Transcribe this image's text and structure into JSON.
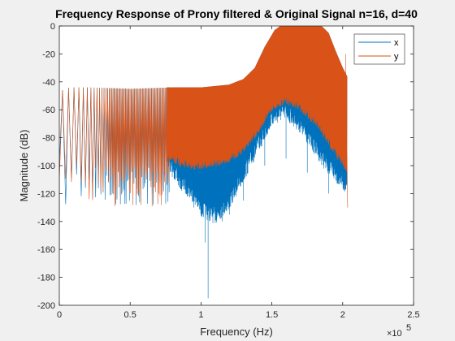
{
  "chart_data": {
    "type": "line",
    "title": "Frequency Response of Prony filtered & Original Signal  n=16, d=40",
    "xlabel": "Frequency (Hz)",
    "ylabel": "Magnitude (dB)",
    "x_exponent_label": "×10",
    "x_exponent_value": "5",
    "xlim": [
      0,
      2.5
    ],
    "ylim": [
      -200,
      0
    ],
    "x_unit_multiplier": 100000,
    "xticks": [
      0,
      0.5,
      1,
      1.5,
      2,
      2.5
    ],
    "xtick_labels": [
      "0",
      "0.5",
      "1",
      "1.5",
      "2",
      "2.5"
    ],
    "yticks": [
      0,
      -20,
      -40,
      -60,
      -80,
      -100,
      -120,
      -140,
      -160,
      -180,
      -200
    ],
    "ytick_labels": [
      "0",
      "-20",
      "-40",
      "-60",
      "-80",
      "-100",
      "-120",
      "-140",
      "-160",
      "-180",
      "-200"
    ],
    "grid": false,
    "legend_position": "top-right",
    "series": [
      {
        "name": "x",
        "color": "#0072bd",
        "envelope_top": [
          [
            0,
            -46
          ],
          [
            0.05,
            -44
          ],
          [
            0.2,
            -44
          ],
          [
            0.5,
            -45
          ],
          [
            0.8,
            -44
          ],
          [
            1.0,
            -44
          ],
          [
            1.2,
            -42
          ],
          [
            1.3,
            -38
          ],
          [
            1.38,
            -30
          ],
          [
            1.45,
            -15
          ],
          [
            1.52,
            -3
          ],
          [
            1.56,
            0
          ],
          [
            1.85,
            0
          ],
          [
            1.9,
            -5
          ],
          [
            1.95,
            -18
          ],
          [
            2.0,
            -30
          ],
          [
            2.03,
            -36
          ]
        ],
        "envelope_bottom": [
          [
            0.76,
            -90
          ],
          [
            0.85,
            -105
          ],
          [
            0.95,
            -115
          ],
          [
            1.0,
            -125
          ],
          [
            1.1,
            -130
          ],
          [
            1.2,
            -120
          ],
          [
            1.3,
            -100
          ],
          [
            1.4,
            -80
          ],
          [
            1.5,
            -60
          ],
          [
            1.6,
            -55
          ],
          [
            1.7,
            -65
          ],
          [
            1.8,
            -80
          ],
          [
            1.9,
            -95
          ],
          [
            2.0,
            -105
          ],
          [
            2.03,
            -110
          ]
        ],
        "dips": [
          [
            0.95,
            -130
          ],
          [
            1.0,
            -135
          ],
          [
            1.03,
            -155
          ],
          [
            1.05,
            -195
          ],
          [
            1.15,
            -140
          ],
          [
            1.2,
            -135
          ],
          [
            1.3,
            -125
          ],
          [
            1.45,
            -100
          ],
          [
            1.6,
            -95
          ],
          [
            1.75,
            -105
          ],
          [
            1.9,
            -120
          ]
        ]
      },
      {
        "name": "y",
        "color": "#d95319",
        "envelope_top": [
          [
            0,
            -46
          ],
          [
            0.05,
            -44
          ],
          [
            0.2,
            -44
          ],
          [
            0.5,
            -45
          ],
          [
            0.8,
            -44
          ],
          [
            1.0,
            -44
          ],
          [
            1.2,
            -42
          ],
          [
            1.3,
            -38
          ],
          [
            1.38,
            -30
          ],
          [
            1.45,
            -15
          ],
          [
            1.52,
            -3
          ],
          [
            1.56,
            0
          ],
          [
            1.85,
            0
          ],
          [
            1.9,
            -5
          ],
          [
            1.95,
            -18
          ],
          [
            2.0,
            -30
          ],
          [
            2.03,
            -36
          ]
        ],
        "envelope_bottom": [
          [
            0.76,
            -90
          ],
          [
            0.85,
            -95
          ],
          [
            0.95,
            -97
          ],
          [
            1.0,
            -97
          ],
          [
            1.1,
            -95
          ],
          [
            1.2,
            -92
          ],
          [
            1.3,
            -85
          ],
          [
            1.4,
            -72
          ],
          [
            1.5,
            -55
          ],
          [
            1.6,
            -50
          ],
          [
            1.7,
            -55
          ],
          [
            1.8,
            -65
          ],
          [
            1.9,
            -80
          ],
          [
            2.0,
            -95
          ],
          [
            2.03,
            -100
          ]
        ],
        "end_spikes": [
          [
            2.02,
            -20
          ],
          [
            2.035,
            -130
          ]
        ]
      }
    ]
  }
}
